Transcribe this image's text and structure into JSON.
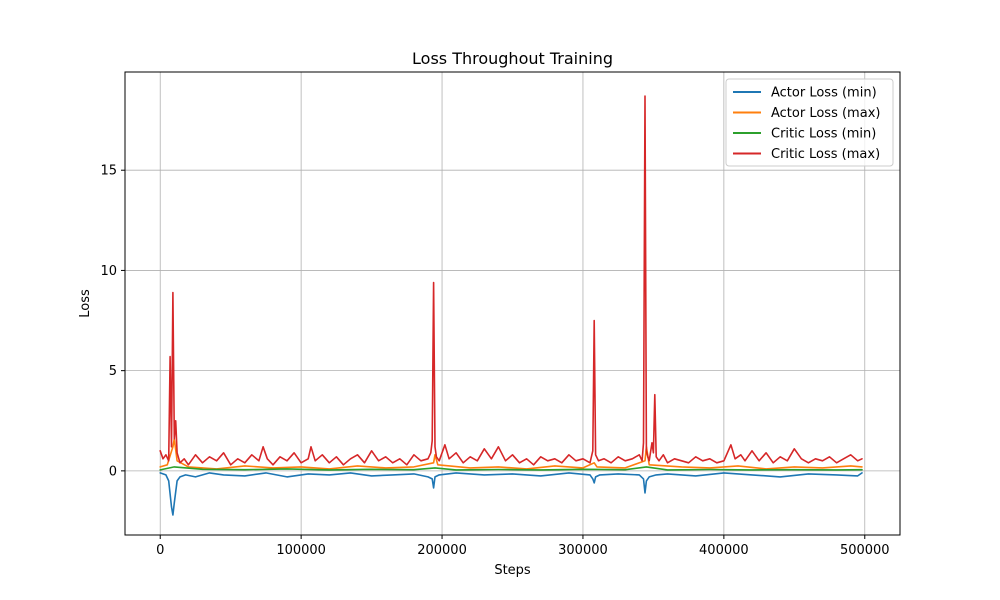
{
  "chart_data": {
    "type": "line",
    "title": "Loss Throughout Training",
    "xlabel": "Steps",
    "ylabel": "Loss",
    "xlim": [
      -25000,
      525000
    ],
    "ylim": [
      -3.2,
      19.9
    ],
    "xticks": [
      0,
      100000,
      200000,
      300000,
      400000,
      500000
    ],
    "xtick_labels": [
      "0",
      "100000",
      "200000",
      "300000",
      "400000",
      "500000"
    ],
    "yticks": [
      0,
      5,
      10,
      15
    ],
    "ytick_labels": [
      "0",
      "5",
      "10",
      "15"
    ],
    "grid": true,
    "legend_position": "top-right",
    "series": [
      {
        "name": "Actor Loss (min)",
        "color": "#1f77b4",
        "x": [
          0,
          4000,
          6000,
          8000,
          9000,
          10000,
          12000,
          14000,
          18000,
          25000,
          35000,
          45000,
          60000,
          75000,
          90000,
          105000,
          120000,
          135000,
          150000,
          165000,
          180000,
          190000,
          193000,
          194000,
          195000,
          198000,
          210000,
          230000,
          250000,
          270000,
          290000,
          305000,
          307000,
          308000,
          309000,
          312000,
          325000,
          340000,
          343000,
          344000,
          345000,
          347000,
          352000,
          360000,
          380000,
          400000,
          420000,
          440000,
          460000,
          480000,
          495000,
          498000
        ],
        "values": [
          -0.1,
          -0.2,
          -0.5,
          -1.8,
          -2.2,
          -1.6,
          -0.5,
          -0.3,
          -0.2,
          -0.3,
          -0.1,
          -0.2,
          -0.25,
          -0.1,
          -0.3,
          -0.15,
          -0.2,
          -0.1,
          -0.25,
          -0.2,
          -0.15,
          -0.3,
          -0.4,
          -0.85,
          -0.3,
          -0.2,
          -0.1,
          -0.2,
          -0.15,
          -0.25,
          -0.1,
          -0.2,
          -0.4,
          -0.6,
          -0.3,
          -0.2,
          -0.15,
          -0.2,
          -0.4,
          -1.1,
          -0.5,
          -0.3,
          -0.2,
          -0.15,
          -0.25,
          -0.1,
          -0.2,
          -0.3,
          -0.15,
          -0.2,
          -0.25,
          -0.1
        ]
      },
      {
        "name": "Actor Loss (max)",
        "color": "#ff7f0e",
        "x": [
          0,
          5000,
          9000,
          10000,
          12000,
          20000,
          40000,
          60000,
          80000,
          100000,
          120000,
          140000,
          160000,
          180000,
          194000,
          195000,
          197000,
          220000,
          240000,
          260000,
          280000,
          300000,
          308000,
          310000,
          330000,
          344000,
          345000,
          347000,
          370000,
          390000,
          410000,
          430000,
          450000,
          470000,
          490000,
          498000
        ],
        "values": [
          0.2,
          0.3,
          1.2,
          1.6,
          0.5,
          0.2,
          0.1,
          0.25,
          0.15,
          0.2,
          0.1,
          0.25,
          0.15,
          0.2,
          0.4,
          0.8,
          0.3,
          0.15,
          0.2,
          0.1,
          0.25,
          0.15,
          0.4,
          0.2,
          0.15,
          0.5,
          1.2,
          0.3,
          0.2,
          0.15,
          0.25,
          0.1,
          0.2,
          0.15,
          0.25,
          0.2
        ]
      },
      {
        "name": "Critic Loss (min)",
        "color": "#2ca02c",
        "x": [
          0,
          10000,
          30000,
          60000,
          90000,
          120000,
          150000,
          180000,
          195000,
          210000,
          240000,
          270000,
          300000,
          330000,
          345000,
          360000,
          390000,
          420000,
          450000,
          480000,
          498000
        ],
        "values": [
          0.05,
          0.2,
          0.08,
          0.06,
          0.1,
          0.05,
          0.08,
          0.06,
          0.15,
          0.05,
          0.07,
          0.05,
          0.08,
          0.06,
          0.2,
          0.05,
          0.07,
          0.05,
          0.06,
          0.05,
          0.06
        ]
      },
      {
        "name": "Critic Loss (max)",
        "color": "#d62728",
        "x": [
          0,
          2000,
          4000,
          6000,
          7000,
          8000,
          9000,
          10000,
          11000,
          12000,
          14000,
          17000,
          20000,
          25000,
          30000,
          35000,
          40000,
          45000,
          50000,
          55000,
          60000,
          65000,
          70000,
          73000,
          76000,
          80000,
          85000,
          90000,
          95000,
          100000,
          105000,
          107000,
          110000,
          115000,
          120000,
          125000,
          130000,
          135000,
          140000,
          145000,
          150000,
          155000,
          160000,
          165000,
          170000,
          175000,
          180000,
          185000,
          190000,
          192000,
          193000,
          194000,
          195000,
          196000,
          198000,
          202000,
          205000,
          210000,
          215000,
          220000,
          225000,
          230000,
          235000,
          240000,
          245000,
          250000,
          255000,
          260000,
          265000,
          270000,
          275000,
          280000,
          285000,
          290000,
          295000,
          300000,
          305000,
          307000,
          308000,
          309000,
          311000,
          315000,
          320000,
          325000,
          330000,
          335000,
          340000,
          342000,
          343000,
          344000,
          345000,
          346000,
          347000,
          349000,
          350000,
          351000,
          352000,
          354000,
          357000,
          360000,
          365000,
          370000,
          375000,
          380000,
          385000,
          390000,
          395000,
          400000,
          405000,
          408000,
          412000,
          415000,
          420000,
          425000,
          430000,
          435000,
          440000,
          445000,
          450000,
          455000,
          460000,
          465000,
          470000,
          475000,
          480000,
          485000,
          490000,
          495000,
          498000
        ],
        "values": [
          1.0,
          0.6,
          0.8,
          0.5,
          5.7,
          1.2,
          8.9,
          1.6,
          2.5,
          0.9,
          0.4,
          0.6,
          0.3,
          0.8,
          0.4,
          0.7,
          0.5,
          0.9,
          0.3,
          0.6,
          0.4,
          0.8,
          0.5,
          1.2,
          0.6,
          0.3,
          0.7,
          0.5,
          0.9,
          0.4,
          0.6,
          1.2,
          0.5,
          0.8,
          0.4,
          0.7,
          0.3,
          0.6,
          0.8,
          0.4,
          1.0,
          0.5,
          0.7,
          0.4,
          0.6,
          0.3,
          0.8,
          0.5,
          0.6,
          0.9,
          1.5,
          9.4,
          1.2,
          0.7,
          0.5,
          1.3,
          0.6,
          0.9,
          0.4,
          0.7,
          0.5,
          1.1,
          0.6,
          1.2,
          0.5,
          0.8,
          0.4,
          0.6,
          0.3,
          0.7,
          0.5,
          0.6,
          0.4,
          0.8,
          0.5,
          0.6,
          0.4,
          1.0,
          7.5,
          0.8,
          0.5,
          0.6,
          0.4,
          0.7,
          0.5,
          0.6,
          0.8,
          0.5,
          1.4,
          18.7,
          1.0,
          0.7,
          0.5,
          1.4,
          0.9,
          3.8,
          0.7,
          0.5,
          0.8,
          0.4,
          0.6,
          0.5,
          0.4,
          0.7,
          0.5,
          0.6,
          0.4,
          0.5,
          1.3,
          0.6,
          0.8,
          0.5,
          1.0,
          0.5,
          0.9,
          0.4,
          0.7,
          0.5,
          1.1,
          0.6,
          0.4,
          0.6,
          0.5,
          0.7,
          0.4,
          0.6,
          0.8,
          0.5,
          0.6
        ]
      }
    ]
  }
}
